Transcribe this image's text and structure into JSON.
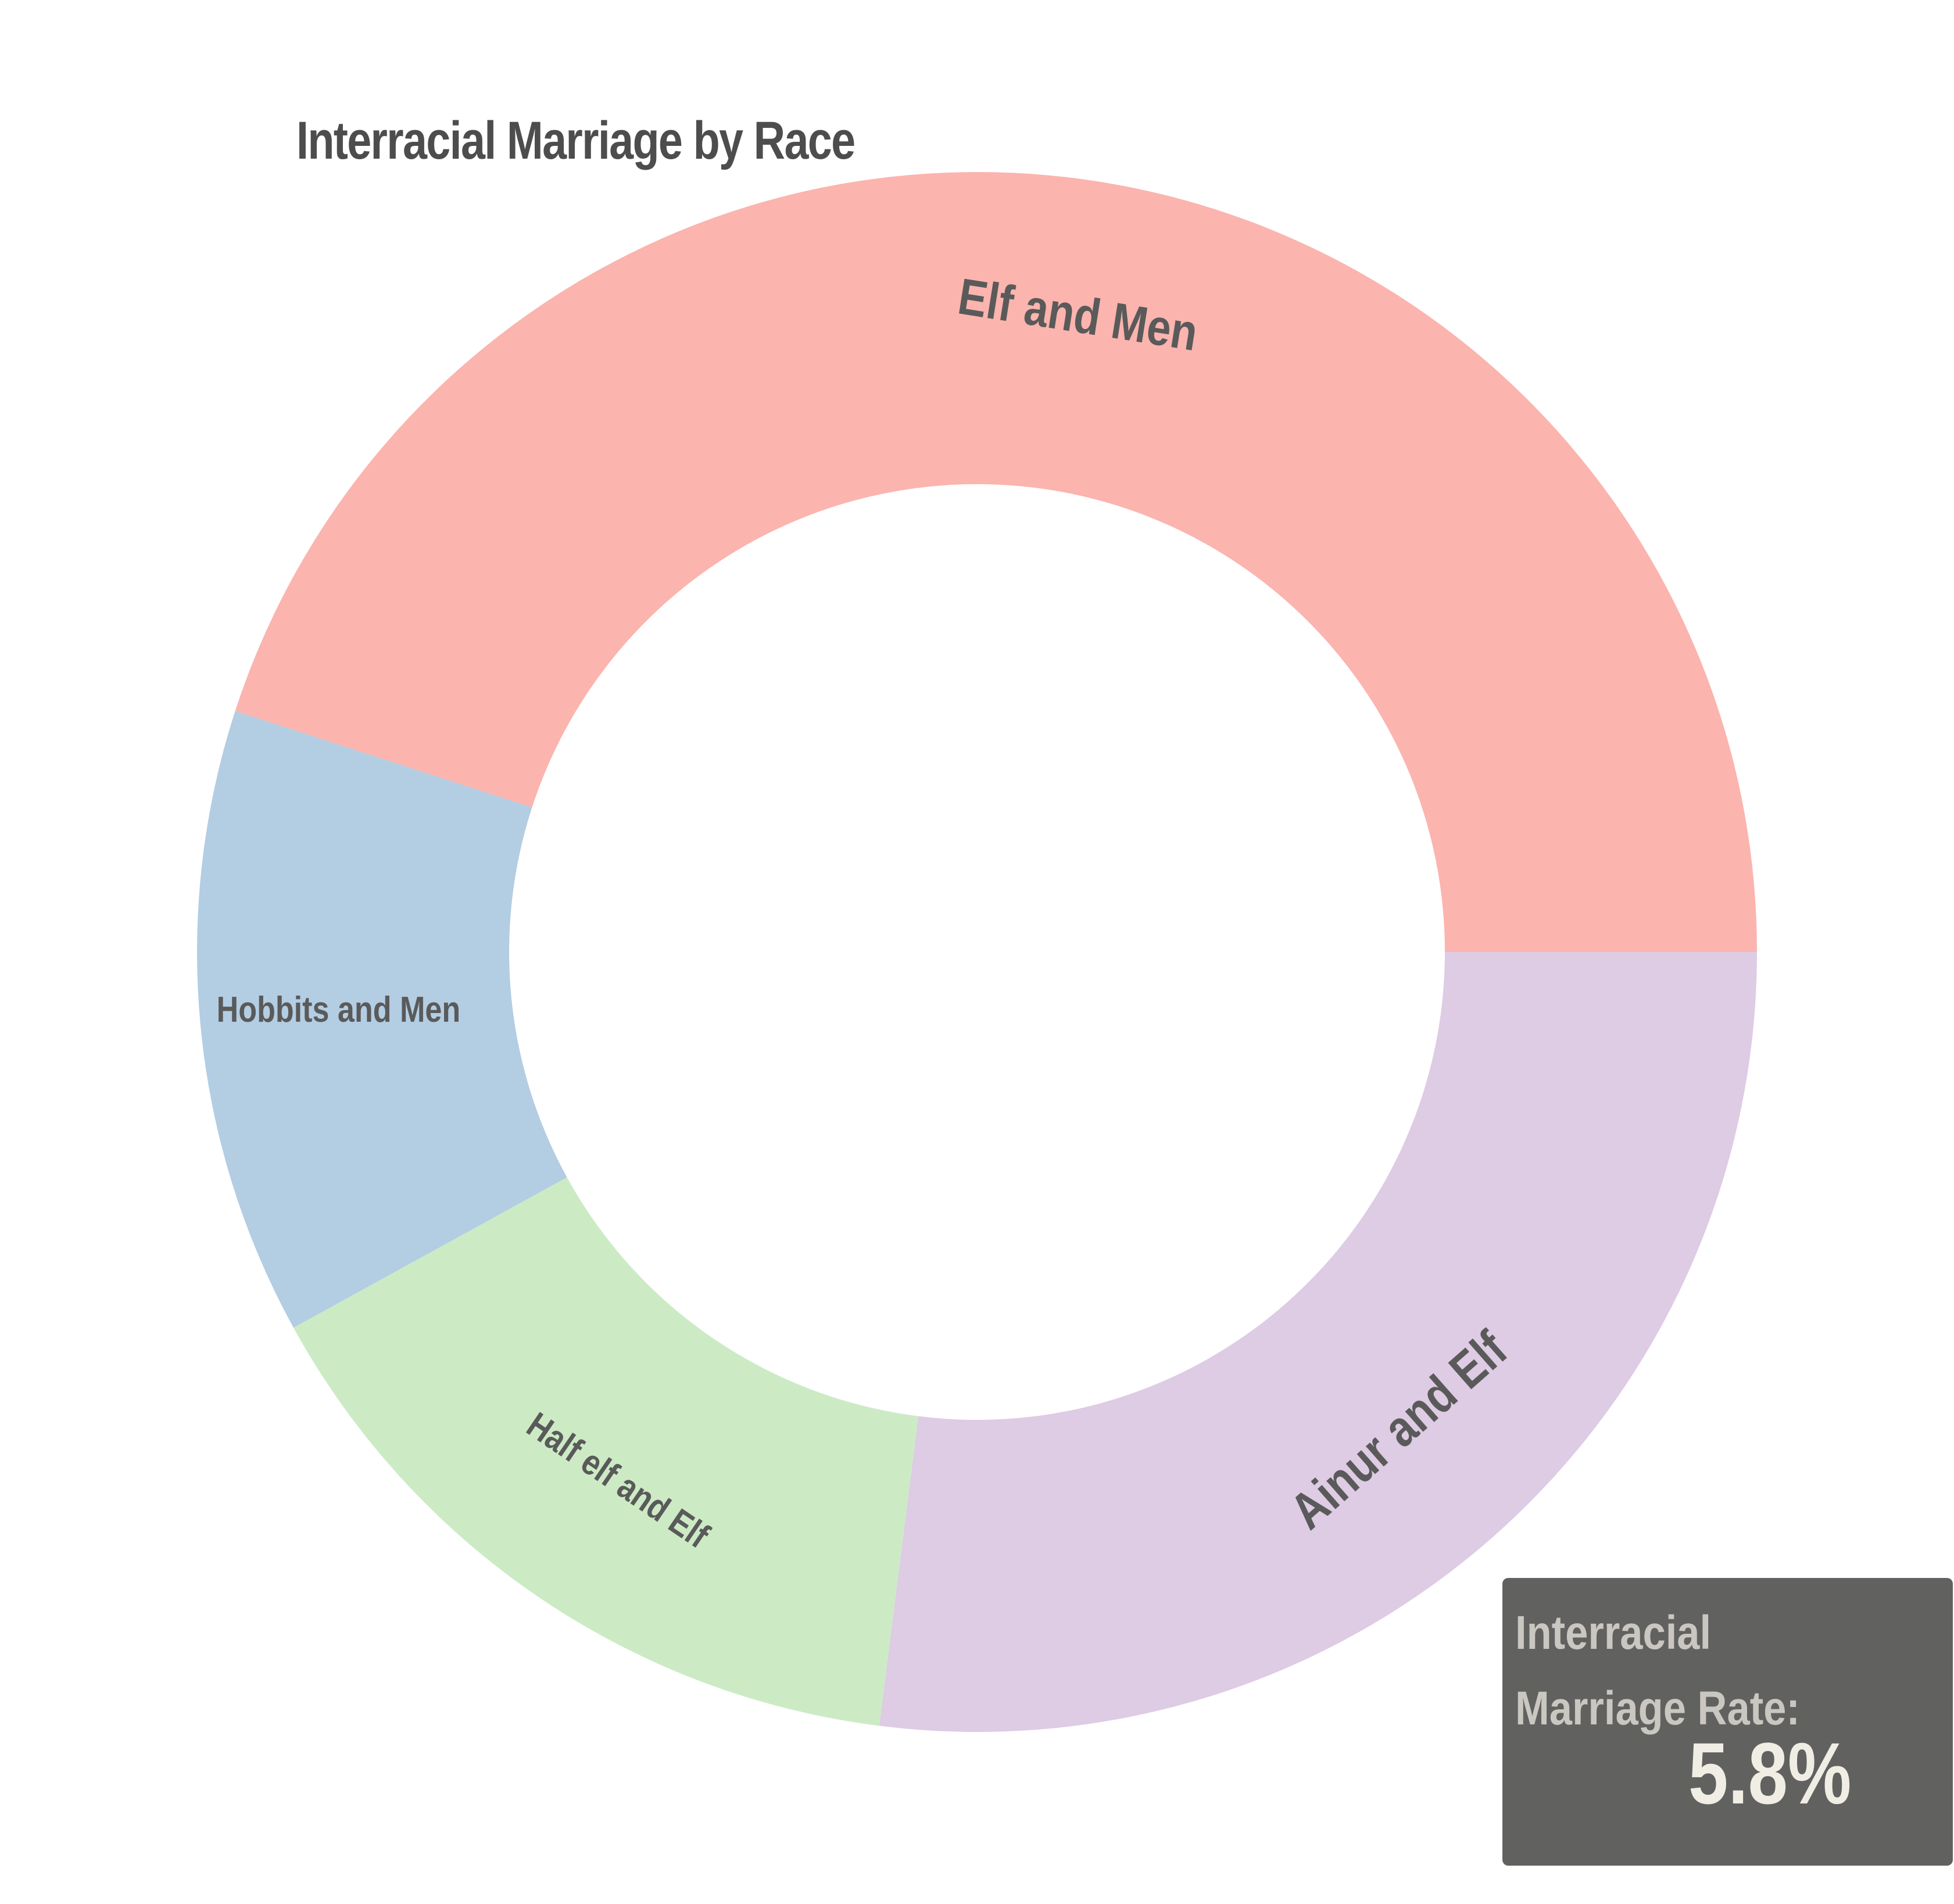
{
  "chart_data": {
    "type": "pie",
    "title": "Interracial Marriage by Race",
    "donut": true,
    "categories": [
      "Elf and Men",
      "Ainur and Elf",
      "Half elf and Elf",
      "Hobbits and Men"
    ],
    "values": [
      45,
      27,
      15,
      13
    ],
    "colors": [
      "#fbb4ae",
      "#decbe4",
      "#ccebc5",
      "#b3cde3"
    ],
    "label_color": "#5a5a5a"
  },
  "stat_box": {
    "label": "Interracial Marriage Rate:",
    "value": "5.8%"
  }
}
